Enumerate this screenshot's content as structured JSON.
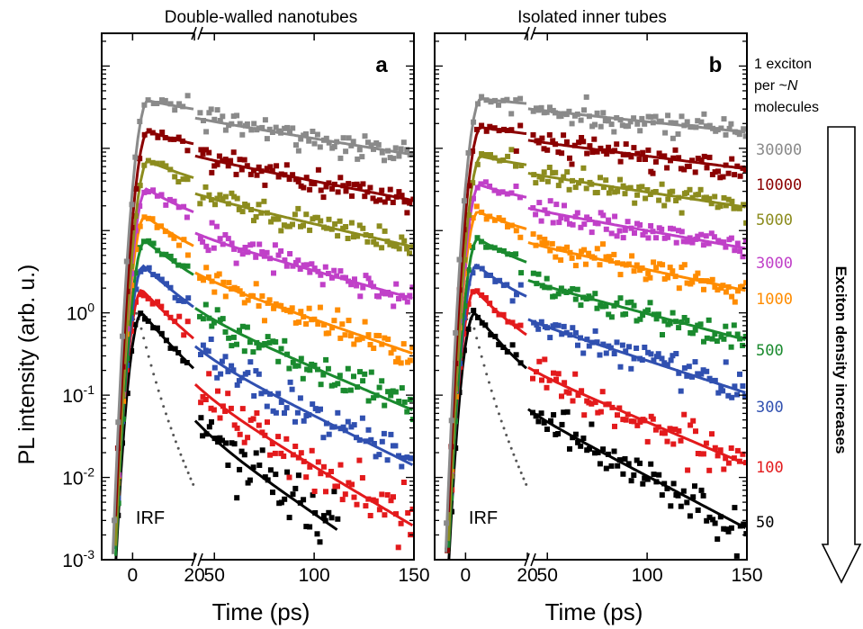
{
  "figure": {
    "ylabel": "PL intensity (arb. u.)",
    "legend_header": [
      "1 exciton",
      "per ~",
      "N",
      "molecules"
    ],
    "arrow_label": "Exciton density increases"
  },
  "chart_data": [
    {
      "type": "line",
      "panel_label": "a",
      "title": "Double-walled nanotubes",
      "xlabel": "Time (ps)",
      "ylabel": "PL intensity (arb. u.)",
      "yscale": "log",
      "ylim": [
        0.001,
        2500
      ],
      "xlim": [
        -10,
        150
      ],
      "x_axis_break": [
        20,
        40
      ],
      "x_ticks": [
        0,
        20,
        50,
        100,
        150
      ],
      "y_ticks": [
        "10^-3",
        "10^-2",
        "10^-1",
        "10^0"
      ],
      "irf_label": "IRF",
      "series": [
        {
          "name": "50",
          "color": "#000000",
          "peak_x": 3,
          "peak_y": 1,
          "fast_decay_ps": 9,
          "slow_decay_ps": 26,
          "fraction_fast": 0.85,
          "end_x": 112
        },
        {
          "name": "100",
          "color": "#e31a1c",
          "peak_x": 3,
          "peak_y": 1.9,
          "fast_decay_ps": 10,
          "slow_decay_ps": 30,
          "fraction_fast": 0.82,
          "end_x": 150
        },
        {
          "name": "300",
          "color": "#3050b0",
          "peak_x": 3.5,
          "peak_y": 3.7,
          "fast_decay_ps": 11,
          "slow_decay_ps": 36,
          "fraction_fast": 0.78,
          "end_x": 150
        },
        {
          "name": "500",
          "color": "#1a8a2e",
          "peak_x": 4,
          "peak_y": 7.5,
          "fast_decay_ps": 12,
          "slow_decay_ps": 42,
          "fraction_fast": 0.72,
          "end_x": 150
        },
        {
          "name": "1000",
          "color": "#ff8c00",
          "peak_x": 4,
          "peak_y": 15,
          "fast_decay_ps": 12,
          "slow_decay_ps": 52,
          "fraction_fast": 0.65,
          "end_x": 150
        },
        {
          "name": "3000",
          "color": "#c040c8",
          "peak_x": 4.5,
          "peak_y": 32,
          "fast_decay_ps": 13,
          "slow_decay_ps": 64,
          "fraction_fast": 0.55,
          "end_x": 150
        },
        {
          "name": "5000",
          "color": "#8c8c1e",
          "peak_x": 5,
          "peak_y": 70,
          "fast_decay_ps": 14,
          "slow_decay_ps": 78,
          "fraction_fast": 0.42,
          "end_x": 150
        },
        {
          "name": "10000",
          "color": "#8b0000",
          "peak_x": 5,
          "peak_y": 160,
          "fast_decay_ps": 15,
          "slow_decay_ps": 92,
          "fraction_fast": 0.3,
          "end_x": 150
        },
        {
          "name": "30000",
          "color": "#8a8a8a",
          "peak_x": 5,
          "peak_y": 380,
          "fast_decay_ps": 16,
          "slow_decay_ps": 110,
          "fraction_fast": 0.18,
          "end_x": 150
        }
      ]
    },
    {
      "type": "line",
      "panel_label": "b",
      "title": "Isolated inner tubes",
      "xlabel": "Time (ps)",
      "ylabel": "",
      "yscale": "log",
      "ylim": [
        0.001,
        2500
      ],
      "xlim": [
        -10,
        150
      ],
      "x_axis_break": [
        20,
        40
      ],
      "x_ticks": [
        0,
        20,
        50,
        100,
        150
      ],
      "irf_label": "IRF",
      "series": [
        {
          "name": "50",
          "color": "#000000",
          "peak_x": 3,
          "peak_y": 1,
          "fast_decay_ps": 8,
          "slow_decay_ps": 34,
          "fraction_fast": 0.82,
          "end_x": 150
        },
        {
          "name": "100",
          "color": "#e31a1c",
          "peak_x": 3,
          "peak_y": 1.9,
          "fast_decay_ps": 9,
          "slow_decay_ps": 42,
          "fraction_fast": 0.75,
          "end_x": 150
        },
        {
          "name": "300",
          "color": "#3050b0",
          "peak_x": 3.5,
          "peak_y": 3.8,
          "fast_decay_ps": 10,
          "slow_decay_ps": 55,
          "fraction_fast": 0.6,
          "end_x": 150
        },
        {
          "name": "500",
          "color": "#1a8a2e",
          "peak_x": 4,
          "peak_y": 8,
          "fast_decay_ps": 11,
          "slow_decay_ps": 68,
          "fraction_fast": 0.5,
          "end_x": 150
        },
        {
          "name": "1000",
          "color": "#ff8c00",
          "peak_x": 4,
          "peak_y": 17,
          "fast_decay_ps": 12,
          "slow_decay_ps": 84,
          "fraction_fast": 0.38,
          "end_x": 150
        },
        {
          "name": "3000",
          "color": "#c040c8",
          "peak_x": 4.5,
          "peak_y": 36,
          "fast_decay_ps": 13,
          "slow_decay_ps": 100,
          "fraction_fast": 0.28,
          "end_x": 150
        },
        {
          "name": "5000",
          "color": "#8c8c1e",
          "peak_x": 5,
          "peak_y": 80,
          "fast_decay_ps": 14,
          "slow_decay_ps": 118,
          "fraction_fast": 0.18,
          "end_x": 150
        },
        {
          "name": "10000",
          "color": "#8b0000",
          "peak_x": 5,
          "peak_y": 180,
          "fast_decay_ps": 15,
          "slow_decay_ps": 140,
          "fraction_fast": 0.12,
          "end_x": 150
        },
        {
          "name": "30000",
          "color": "#8a8a8a",
          "peak_x": 5,
          "peak_y": 400,
          "fast_decay_ps": 16,
          "slow_decay_ps": 170,
          "fraction_fast": 0.08,
          "end_x": 150
        }
      ]
    }
  ]
}
